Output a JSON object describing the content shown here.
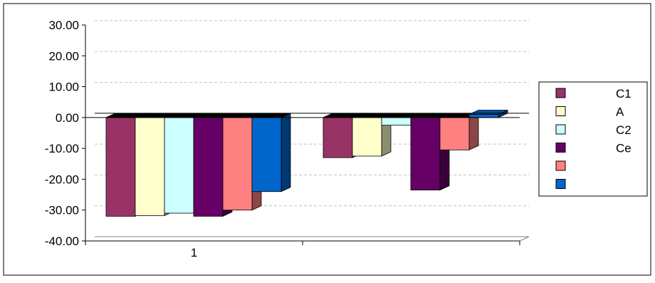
{
  "chart_data": {
    "type": "bar",
    "categories": [
      "1",
      ""
    ],
    "series": [
      {
        "name": "C1",
        "values": [
          -32.0,
          -13.0
        ],
        "color": "#993366"
      },
      {
        "name": "A",
        "values": [
          -31.8,
          -12.5
        ],
        "color": "#FFFFCC"
      },
      {
        "name": "C2",
        "values": [
          -31.0,
          -2.5
        ],
        "color": "#CCFFFF"
      },
      {
        "name": "Ce",
        "values": [
          -32.0,
          -23.5
        ],
        "color": "#660066"
      },
      {
        "name": "",
        "values": [
          -30.0,
          -10.5
        ],
        "color": "#FF8080"
      },
      {
        "name": "",
        "values": [
          -24.0,
          1.0
        ],
        "color": "#0066CC"
      }
    ],
    "yticks": [
      "30.00",
      "20.00",
      "10.00",
      "0.00",
      "-10.00",
      "-20.00",
      "-30.00",
      "-40.00"
    ],
    "ylim": [
      -40,
      30
    ],
    "grid": true,
    "legend": "right",
    "title": "",
    "xlabel": "",
    "ylabel": ""
  }
}
